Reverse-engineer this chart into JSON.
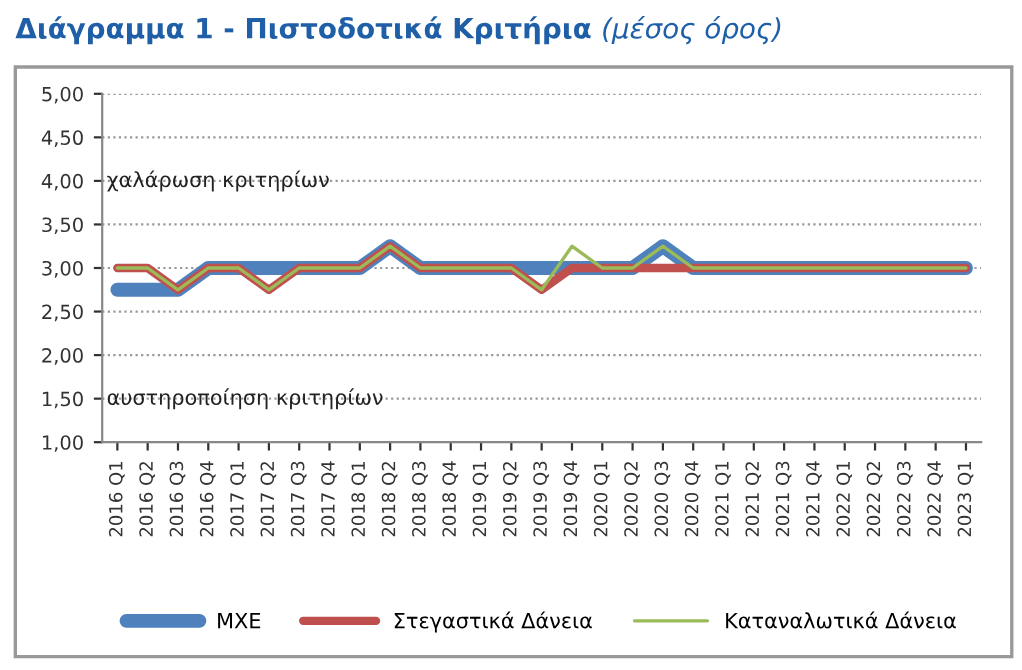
{
  "chart_data": {
    "type": "line",
    "title": "Διάγραμμα 1 - Πιστοδοτικά Κριτήρια",
    "subtitle": "(μέσος όρος)",
    "categories": [
      "2016 Q1",
      "2016 Q2",
      "2016 Q3",
      "2016 Q4",
      "2017 Q1",
      "2017 Q2",
      "2017 Q3",
      "2017 Q4",
      "2018 Q1",
      "2018 Q2",
      "2018 Q3",
      "2018 Q4",
      "2019 Q1",
      "2019 Q2",
      "2019 Q3",
      "2019 Q4",
      "2020 Q1",
      "2020 Q2",
      "2020 Q3",
      "2020 Q4",
      "2021 Q1",
      "2021 Q2",
      "2021 Q3",
      "2021 Q4",
      "2022 Q1",
      "2022 Q2",
      "2022 Q3",
      "2022 Q4",
      "2023 Q1"
    ],
    "series": [
      {
        "name": "ΜΧΕ",
        "color": "#4f81bd",
        "values": [
          2.75,
          2.75,
          2.75,
          3.0,
          3.0,
          3.0,
          3.0,
          3.0,
          3.0,
          3.25,
          3.0,
          3.0,
          3.0,
          3.0,
          3.0,
          3.0,
          3.0,
          3.0,
          3.25,
          3.0,
          3.0,
          3.0,
          3.0,
          3.0,
          3.0,
          3.0,
          3.0,
          3.0,
          3.0
        ]
      },
      {
        "name": "Στεγαστικά Δάνεια",
        "color": "#c0504d",
        "values": [
          3.0,
          3.0,
          2.75,
          3.0,
          3.0,
          2.75,
          3.0,
          3.0,
          3.0,
          3.25,
          3.0,
          3.0,
          3.0,
          3.0,
          2.75,
          3.0,
          3.0,
          3.0,
          3.0,
          3.0,
          3.0,
          3.0,
          3.0,
          3.0,
          3.0,
          3.0,
          3.0,
          3.0,
          3.0
        ]
      },
      {
        "name": "Καταναλωτικά Δάνεια",
        "color": "#9bbb59",
        "values": [
          3.0,
          3.0,
          2.75,
          3.0,
          3.0,
          2.75,
          3.0,
          3.0,
          3.0,
          3.25,
          3.0,
          3.0,
          3.0,
          3.0,
          2.75,
          3.25,
          3.0,
          3.0,
          3.25,
          3.0,
          3.0,
          3.0,
          3.0,
          3.0,
          3.0,
          3.0,
          3.0,
          3.0,
          3.0
        ]
      }
    ],
    "ylim": [
      1,
      5
    ],
    "yticks": [
      {
        "value": 1,
        "label": "1,00"
      },
      {
        "value": 1.5,
        "label": "1,50"
      },
      {
        "value": 2,
        "label": "2,00"
      },
      {
        "value": 2.5,
        "label": "2,50"
      },
      {
        "value": 3,
        "label": "3,00"
      },
      {
        "value": 3.5,
        "label": "3,50"
      },
      {
        "value": 4,
        "label": "4,00"
      },
      {
        "value": 4.5,
        "label": "4,50"
      },
      {
        "value": 5,
        "label": "5,00"
      }
    ],
    "annotations": [
      "χαλάρωση κριτηρίων",
      "αυστηροποίηση κριτηρίων"
    ],
    "grid": "y",
    "legend": "bottom",
    "marker": "none",
    "line_style": "solid"
  }
}
